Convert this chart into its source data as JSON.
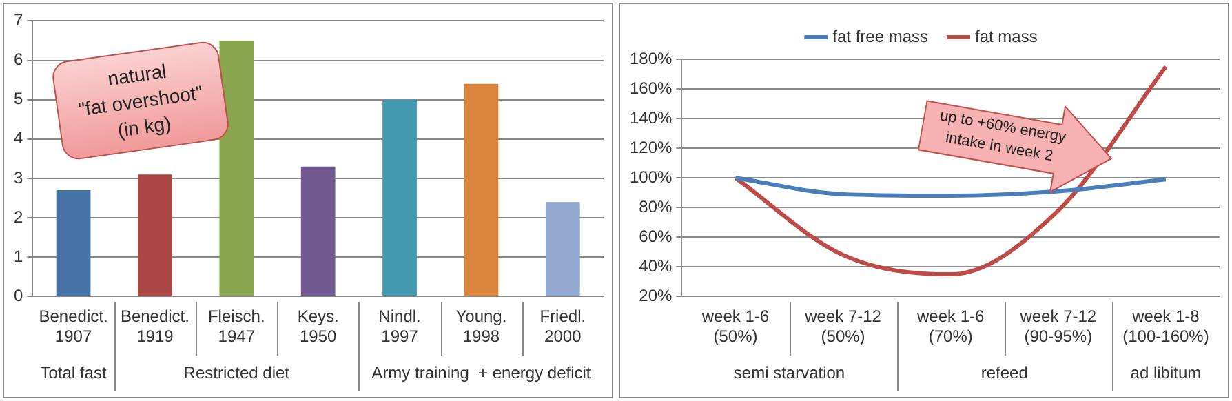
{
  "chart_data": [
    {
      "type": "bar",
      "categories": [
        "Benedict. 1907",
        "Benedict. 1919",
        "Fleisch. 1947",
        "Keys. 1950",
        "Nindl. 1997",
        "Young. 1998",
        "Friedl. 2000"
      ],
      "values": [
        2.7,
        3.1,
        6.5,
        3.3,
        5.0,
        5.4,
        2.4
      ],
      "colors": [
        "#4572a7",
        "#aa4643",
        "#89a54e",
        "#71588f",
        "#4198af",
        "#db843d",
        "#93a9cf"
      ],
      "ylim": [
        0,
        7
      ],
      "yticks": [
        0,
        1,
        2,
        3,
        4,
        5,
        6,
        7
      ],
      "grid": "y",
      "legend": false,
      "annotations": [
        "natural\n\"fat overshoot\"\n(in kg)",
        "Total fast",
        "Restricted diet",
        "Army training  + energy deficit"
      ]
    },
    {
      "type": "line",
      "categories": [
        "week 1-6 (50%)",
        "week 7-12 (50%)",
        "week 1-6 (70%)",
        "week 7-12 (90-95%)",
        "week 1-8 (100-160%)"
      ],
      "series": [
        {
          "name": "fat free mass",
          "color": "#4a7ebb",
          "values": [
            100,
            89,
            88,
            91,
            99
          ]
        },
        {
          "name": "fat mass",
          "color": "#be4b48",
          "values": [
            100,
            48,
            35,
            78,
            175
          ]
        }
      ],
      "ylim": [
        20,
        180
      ],
      "yticks": [
        {
          "value": 20,
          "label": "20%"
        },
        {
          "value": 40,
          "label": "40%"
        },
        {
          "value": 60,
          "label": "60%"
        },
        {
          "value": 80,
          "label": "80%"
        },
        {
          "value": 100,
          "label": "100%"
        },
        {
          "value": 120,
          "label": "120%"
        },
        {
          "value": 140,
          "label": "140%"
        },
        {
          "value": 160,
          "label": "160%"
        },
        {
          "value": 180,
          "label": "180%"
        }
      ],
      "grid": "y",
      "legend": "top",
      "marker": "none",
      "line_style": "solid",
      "annotations": [
        "up to +60% energy\nintake in week 2",
        "semi starvation",
        "refeed",
        "ad libitum"
      ]
    }
  ]
}
